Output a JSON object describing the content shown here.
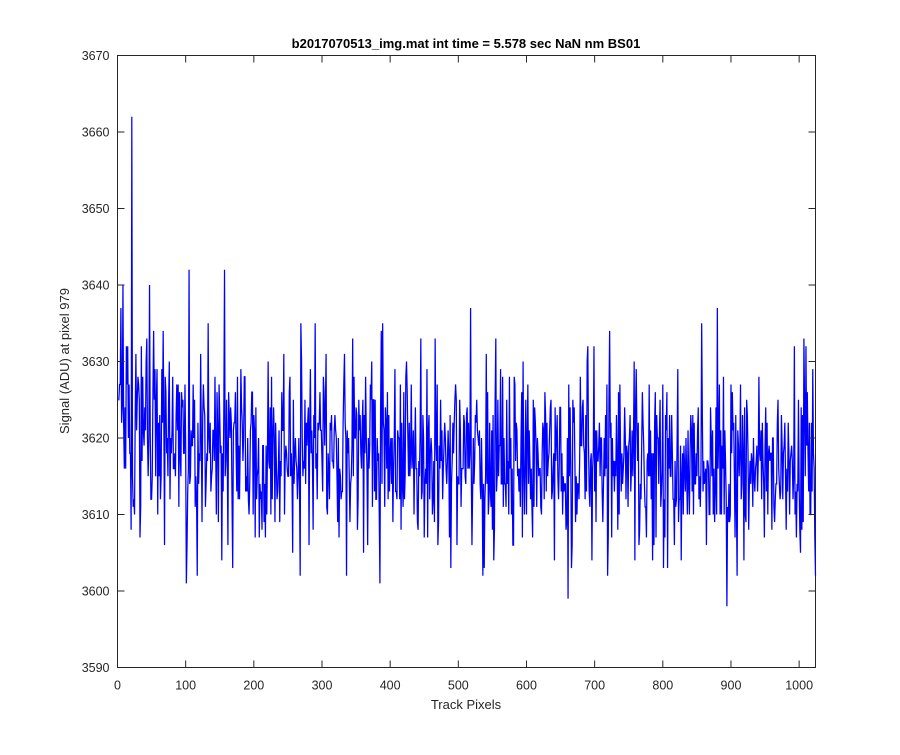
{
  "chart_data": {
    "type": "line",
    "title": "b2017070513_img.mat int time = 5.578 sec  NaN nm BS01",
    "xlabel": "Track Pixels",
    "ylabel": "Signal (ADU) at pixel 979",
    "xlim": [
      0,
      1024
    ],
    "ylim": [
      3590,
      3670
    ],
    "xticks": [
      0,
      100,
      200,
      300,
      400,
      500,
      600,
      700,
      800,
      900,
      1000
    ],
    "yticks": [
      3590,
      3600,
      3610,
      3620,
      3630,
      3640,
      3650,
      3660,
      3670
    ],
    "grid": false,
    "line_color": "#0000ff",
    "series": [
      {
        "x_start": 1,
        "x_step": 1,
        "noise_std": 6.5,
        "mean_trend": [
          [
            0,
            3621
          ],
          [
            100,
            3619.5
          ],
          [
            300,
            3618.5
          ],
          [
            600,
            3617.5
          ],
          [
            1024,
            3616.5
          ]
        ],
        "values_sampled_every_4px": [
          3625,
          3637,
          3622,
          3632,
          3627,
          3662,
          3610,
          3625,
          3607,
          3628,
          3621,
          3615,
          3612,
          3634,
          3625,
          3615,
          3629,
          3606,
          3620,
          3612,
          3628,
          3615,
          3627,
          3615,
          3618,
          3601,
          3642,
          3619,
          3625,
          3602,
          3617,
          3623,
          3611,
          3635,
          3613,
          3621,
          3610,
          3627,
          3604,
          3642,
          3618,
          3620,
          3603,
          3626,
          3612,
          3629,
          3620,
          3615,
          3610,
          3626,
          3621,
          3615,
          3614,
          3619,
          3607,
          3630,
          3610,
          3624,
          3617,
          3621,
          3626,
          3610,
          3616,
          3628,
          3605,
          3620,
          3615,
          3635,
          3617,
          3622,
          3606,
          3621,
          3620,
          3612,
          3626,
          3613,
          3624,
          3618,
          3621,
          3616,
          3620,
          3607,
          3613,
          3631,
          3621,
          3609,
          3633,
          3620,
          3612,
          3618,
          3605,
          3620,
          3616,
          3630,
          3613,
          3620,
          3601,
          3635,
          3624,
          3612,
          3620,
          3616,
          3613,
          3620,
          3622,
          3612,
          3626,
          3615,
          3618,
          3624,
          3608,
          3633,
          3620,
          3614,
          3623,
          3618,
          3609,
          3627,
          3616,
          3612,
          3620,
          3621,
          3603,
          3618,
          3625,
          3614,
          3616,
          3622,
          3624,
          3618,
          3613,
          3623,
          3620,
          3612,
          3614,
          3631,
          3612,
          3621,
          3608,
          3615,
          3619,
          3628,
          3614,
          3617,
          3620,
          3606,
          3622,
          3613,
          3626,
          3610,
          3620,
          3617,
          3607,
          3622,
          3618,
          3611,
          3621,
          3613,
          3618,
          3612,
          3604,
          3623,
          3624,
          3610,
          3614,
          3599,
          3617,
          3622,
          3615,
          3612,
          3619,
          3618,
          3630,
          3611,
          3616,
          3621,
          3617,
          3620,
          3614,
          3616,
          3625,
          3607,
          3613,
          3617,
          3627,
          3614,
          3620,
          3611,
          3613,
          3620,
          3629,
          3606,
          3619,
          3614,
          3617,
          3615,
          3604,
          3626,
          3620,
          3611,
          3603,
          3621,
          3616,
          3623,
          3606,
          3620,
          3612,
          3618,
          3613,
          3621,
          3623,
          3610,
          3618,
          3612,
          3635,
          3614,
          3617,
          3610,
          3621,
          3613,
          3616,
          3621,
          3628,
          3612,
          3614,
          3618,
          3615,
          3602,
          3618,
          3623,
          3610,
          3618,
          3614,
          3620,
          3617,
          3628,
          3612,
          3607,
          3622,
          3617,
          3620,
          3612,
          3625,
          3613,
          3618,
          3608,
          3618,
          3619,
          3632,
          3614,
          3608,
          3623,
          3615,
          3618,
          3610,
          3618,
          3621,
          3615,
          3625,
          3612,
          3604,
          3617,
          3620,
          3615,
          3620,
          3622,
          3613,
          3618,
          3616,
          3602
        ]
      }
    ]
  }
}
